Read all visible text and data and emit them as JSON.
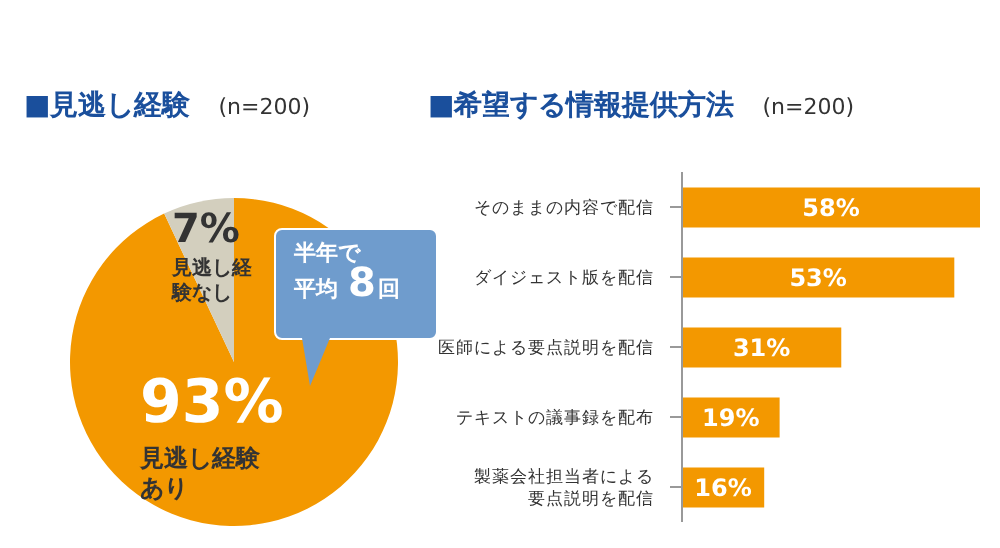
{
  "chart_data": [
    {
      "type": "pie",
      "title": "■見逃し経験",
      "subtitle": "(n=200)",
      "categories": [
        "見逃し経験あり",
        "見逃し経験なし"
      ],
      "values": [
        93,
        7
      ],
      "colors": [
        "#f39800",
        "#d3cfbe"
      ],
      "value_labels": [
        "93%",
        "7%"
      ],
      "annotations": [
        "半年で平均8回"
      ]
    },
    {
      "type": "bar",
      "orientation": "horizontal",
      "title": "■希望する情報提供方法",
      "subtitle": "(n=200)",
      "categories": [
        "そのままの内容で配信",
        "ダイジェスト版を配信",
        "医師による要点説明を配信",
        "テキストの議事録を配布",
        "製薬会社担当者による要点説明を配信"
      ],
      "values": [
        58,
        53,
        31,
        19,
        16
      ],
      "color": "#f39800",
      "value_labels": [
        "58%",
        "53%",
        "31%",
        "19%",
        "16%"
      ],
      "tick_labels": "y"
    }
  ]
}
